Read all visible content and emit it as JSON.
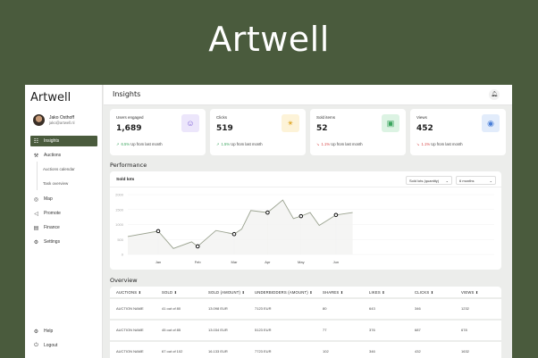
{
  "hero_title": "Artwell",
  "sidebar": {
    "logo": "Artwell",
    "user": {
      "name": "Jako Osthoff",
      "email": "jako@artwell.nl"
    },
    "items": [
      {
        "label": "Insights",
        "icon": "chart-icon",
        "glyph": "☷",
        "active": true
      },
      {
        "label": "Auctions",
        "icon": "gavel-icon",
        "glyph": "⚒"
      },
      {
        "label": "Map",
        "icon": "map-pin-icon",
        "glyph": "◎"
      },
      {
        "label": "Promote",
        "icon": "megaphone-icon",
        "glyph": "◁"
      },
      {
        "label": "Finance",
        "icon": "wallet-icon",
        "glyph": "▤"
      },
      {
        "label": "Settings",
        "icon": "gear-icon",
        "glyph": "⚙"
      }
    ],
    "subitems": [
      "Auctions calendar",
      "Task overview"
    ],
    "bottom": [
      {
        "label": "Help",
        "icon": "help-icon",
        "glyph": "⚙"
      },
      {
        "label": "Logout",
        "icon": "power-icon",
        "glyph": "⏻"
      }
    ]
  },
  "header": {
    "title": "Insights",
    "bell_glyph": "⌂"
  },
  "cards": [
    {
      "label": "Users engaged",
      "value": "1,689",
      "trend_pct": "6.5%",
      "trend_text": "Up from last month",
      "trend_dir": "up",
      "icon": "users-icon",
      "glyph": "☺",
      "bg": "#ece6fb",
      "fg": "#7b5bd6"
    },
    {
      "label": "Clicks",
      "value": "519",
      "trend_pct": "1.5%",
      "trend_text": "Up from last month",
      "trend_dir": "up",
      "icon": "cursor-click-icon",
      "glyph": "✴",
      "bg": "#fdf3d8",
      "fg": "#e0a92a"
    },
    {
      "label": "Sold items",
      "value": "52",
      "trend_pct": "1.1%",
      "trend_text": "Up from last month",
      "trend_dir": "down",
      "icon": "banknote-icon",
      "glyph": "▣",
      "bg": "#dcf3e3",
      "fg": "#3aa45d"
    },
    {
      "label": "Views",
      "value": "452",
      "trend_pct": "1.1%",
      "trend_text": "Up from last month",
      "trend_dir": "down",
      "icon": "eye-icon",
      "glyph": "◉",
      "bg": "#e2ecfb",
      "fg": "#4a7fd8"
    }
  ],
  "colors": {
    "up": "#3aa45d",
    "down": "#d64545",
    "brand": "#4a5b3d"
  },
  "performance": {
    "section_title": "Performance",
    "chart_title": "Sold lots",
    "select_metric": "Sold lots (quantity)",
    "select_range": "6 months"
  },
  "chart_data": {
    "type": "line",
    "title": "Sold lots",
    "xlabel": "",
    "ylabel": "",
    "ylim": [
      0,
      2000
    ],
    "yticks": [
      0,
      500,
      1000,
      1500,
      2000
    ],
    "categories": [
      "Jan",
      "Feb",
      "Mar",
      "Apr",
      "May",
      "Jun"
    ],
    "series": [
      {
        "name": "Sold lots",
        "values": [
          600,
          780,
          200,
          420,
          270,
          800,
          680,
          850,
          1470,
          1400,
          1820,
          1200,
          1280,
          1400,
          970,
          1320,
          1400
        ]
      }
    ],
    "x_positions": [
      0,
      1,
      1.5,
      2.1,
      2.3,
      2.9,
      3.5,
      3.75,
      4.05,
      4.6,
      5.1,
      5.45,
      5.7,
      6.0,
      6.3,
      6.85,
      7.4
    ],
    "marked_points": [
      "Jan",
      "Feb",
      "Mar",
      "Apr",
      "May",
      "Jun"
    ],
    "grid": true
  },
  "overview": {
    "section_title": "Overview",
    "columns": [
      "AUCTIONS",
      "SOLD",
      "SOLD (AMOUNT)",
      "UNDERBIDDERS (AMOUNT)",
      "SHARES",
      "LIKES",
      "CLICKS",
      "VIEWS"
    ],
    "sort_glyph": "⬍",
    "rows": [
      [
        "AUCTION NAME",
        "41 out of 80",
        "13.098 EUR",
        "7123 EUR",
        "80",
        "643",
        "346",
        "1232"
      ],
      [
        "AUCTION NAME",
        "45 out of 85",
        "13.034 EUR",
        "5123 EUR",
        "77",
        "376",
        "687",
        "678"
      ],
      [
        "AUCTION NAME",
        "67 out of 102",
        "16.133 EUR",
        "7723 EUR",
        "102",
        "346",
        "432",
        "1632"
      ]
    ]
  }
}
